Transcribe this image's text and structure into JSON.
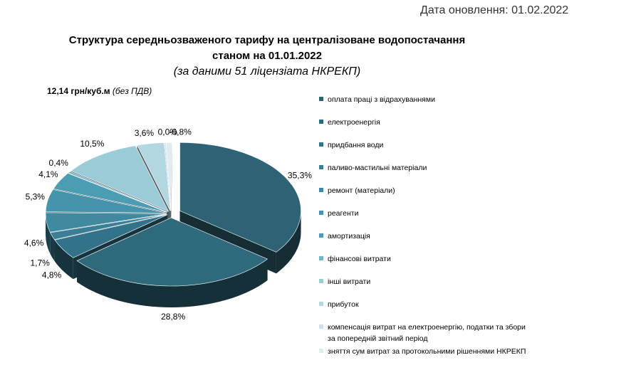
{
  "header": {
    "update_date": "Дата оновлення: 01.02.2022"
  },
  "chart_data": {
    "type": "pie",
    "title_line1": "Структура  середньозваженого тарифу на централізоване водопостачання",
    "title_line2": "станом на 01.01.2022",
    "subtitle": "(за даними 51 ліцензіата НКРЕКП)",
    "total_value": "12,14 грн/куб.м",
    "total_note": "(без ПДВ)",
    "labels": [
      "оплата праці з відрахуваннями",
      "електроенергія",
      "придбання води",
      "паливо-мастильні матеріали",
      "ремонт (матеріали)",
      "реагенти",
      "амортизація",
      "фінансові витрати",
      "інші витрати",
      "прибуток",
      "компенсація витрат на електроенергію, податки та збори за попередній звітний період",
      "зняття сум витрат за протокольними рішеннями НКРЕКП"
    ],
    "values": [
      35.3,
      28.8,
      4.8,
      1.7,
      4.6,
      5.3,
      4.1,
      0.4,
      10.5,
      3.6,
      0.0,
      -0.8
    ],
    "value_labels": [
      "35,3%",
      "28,8%",
      "4,8%",
      "1,7%",
      "4,6%",
      "5,3%",
      "4,1%",
      "0,4%",
      "10,5%",
      "3,6%",
      "0,0%",
      "-0,8%"
    ],
    "colors": [
      "#2e6375",
      "#2f6a7c",
      "#33738a",
      "#3a7f96",
      "#3f8aa1",
      "#4594ab",
      "#4c9db3",
      "#75b5c6",
      "#9ccbd8",
      "#b3d7e1",
      "#c7e2ea",
      "#dcecf1"
    ],
    "legend_position": "right"
  }
}
